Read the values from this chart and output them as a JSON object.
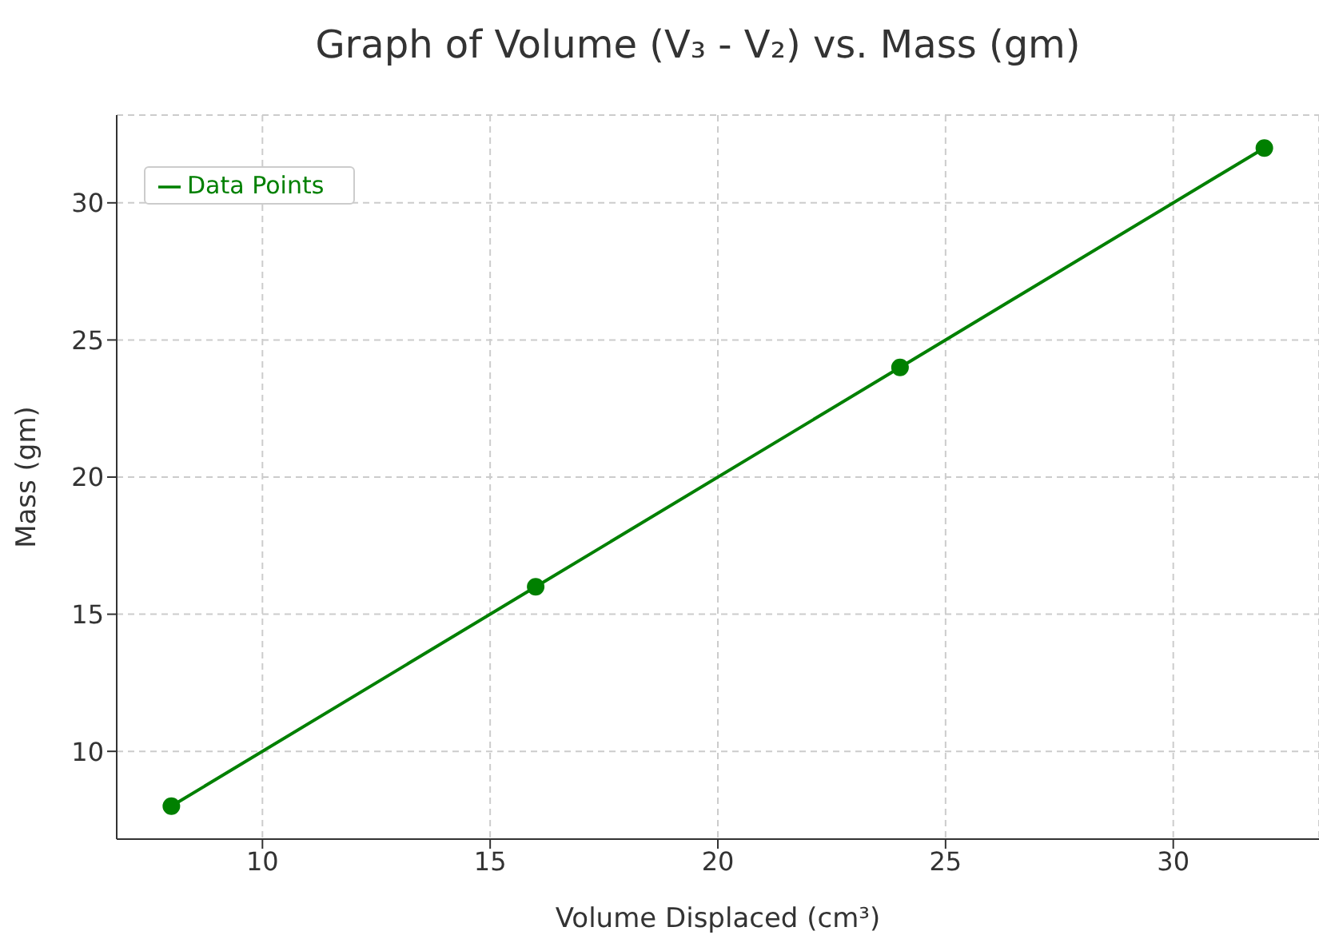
{
  "chart_data": {
    "type": "line",
    "title": "Graph of Volume (V₃ - V₂) vs. Mass (gm)",
    "xlabel": "Volume Displaced (cm³)",
    "ylabel": "Mass (gm)",
    "x": [
      8,
      16,
      24,
      32
    ],
    "series": [
      {
        "name": "Data Points",
        "color": "#008000",
        "values": [
          8,
          16,
          24,
          32
        ]
      }
    ],
    "xlim": [
      6.8,
      33.2
    ],
    "xticks": [
      10,
      15,
      20,
      25,
      30
    ],
    "ylim": [
      6.8,
      33.2
    ],
    "yticks": [
      10,
      15,
      20,
      25,
      30
    ],
    "grid": true,
    "legend": "top left",
    "marker": "circle",
    "line_style": "solid"
  }
}
